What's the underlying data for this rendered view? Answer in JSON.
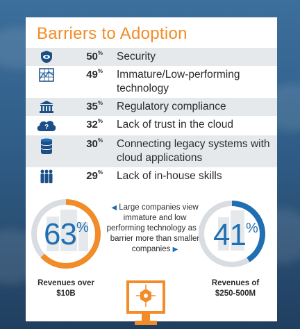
{
  "title": "Barriers to Adoption",
  "barriers": [
    {
      "pct": "50",
      "unit": "%",
      "label": "Security",
      "icon": "shield-icon"
    },
    {
      "pct": "49",
      "unit": "%",
      "label": "Immature/Low-performing technology",
      "icon": "performance-chart-icon"
    },
    {
      "pct": "35",
      "unit": "%",
      "label": "Regulatory compliance",
      "icon": "government-building-icon"
    },
    {
      "pct": "32",
      "unit": "%",
      "label": "Lack of trust in the cloud",
      "icon": "question-cloud-icon"
    },
    {
      "pct": "30",
      "unit": "%",
      "label": "Connecting legacy systems with cloud applications",
      "icon": "database-icon"
    },
    {
      "pct": "29",
      "unit": "%",
      "label": "Lack of in-house skills",
      "icon": "people-icon"
    }
  ],
  "large": {
    "value": "63",
    "unit": "%",
    "fraction": 0.63,
    "caption": "Revenues over $10B",
    "color": "#f28c28"
  },
  "small": {
    "value": "41",
    "unit": "%",
    "fraction": 0.41,
    "caption": "Revenues of $250-500M",
    "color": "#1f6fb2"
  },
  "comparison_text": "Large companies view immature and low performing technology as a barrier more than smaller companies",
  "colors": {
    "orange": "#f28c28",
    "blue": "#1f6fb2",
    "navy": "#1c4f86"
  }
}
